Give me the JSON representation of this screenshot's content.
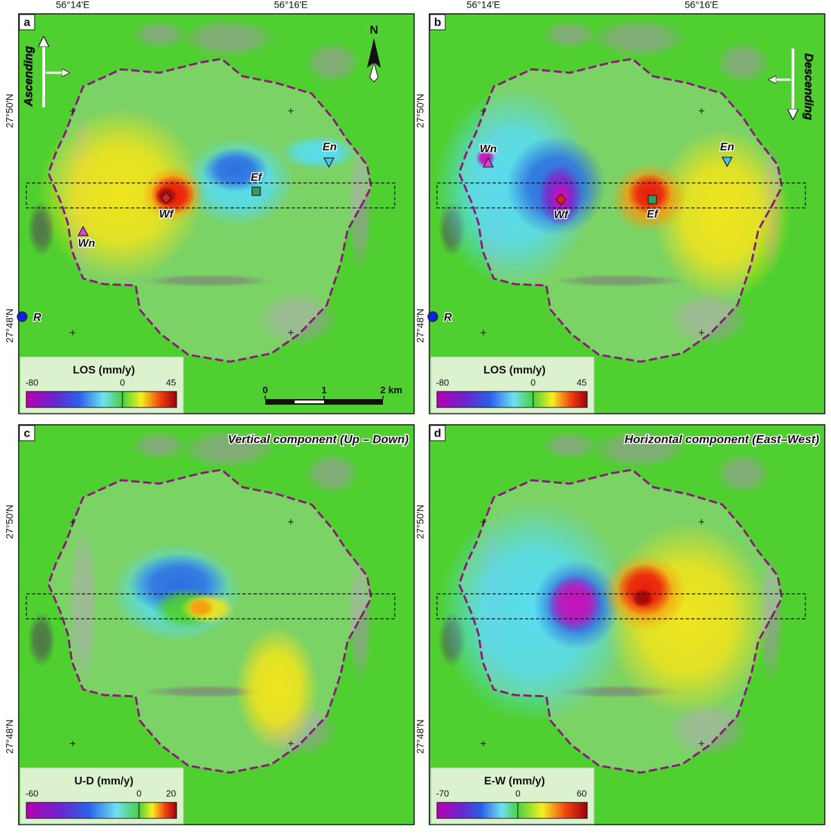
{
  "graticule": {
    "lon": [
      "56°14'E",
      "56°16'E"
    ],
    "lat": [
      "27°50'N",
      "27°48'N"
    ]
  },
  "panels": [
    {
      "letter": "a",
      "orientation": "Ascending",
      "north": "N",
      "points": [
        {
          "label": "Wn",
          "color": "#e040e0",
          "shape": "triangle-up"
        },
        {
          "label": "Wf",
          "color": "#e02020",
          "shape": "diamond"
        },
        {
          "label": "Ef",
          "color": "#3a9a60",
          "shape": "square"
        },
        {
          "label": "En",
          "color": "#40c8f0",
          "shape": "triangle-down"
        },
        {
          "label": "R",
          "color": "#1020e0",
          "shape": "circle"
        }
      ],
      "legend": {
        "title": "LOS (mm/y)",
        "range": [
          -80,
          45
        ],
        "ticks": [
          -80,
          0,
          45
        ]
      },
      "scale_bar": {
        "range": [
          0,
          2
        ],
        "ticks": [
          0,
          1,
          {
            "value": 2,
            "label": "2 km"
          }
        ]
      }
    },
    {
      "letter": "b",
      "orientation": "Descending",
      "points": [
        {
          "label": "Wn",
          "color": "#e040e0",
          "shape": "triangle-up"
        },
        {
          "label": "Wf",
          "color": "#e02020",
          "shape": "diamond"
        },
        {
          "label": "Ef",
          "color": "#3a9a60",
          "shape": "square"
        },
        {
          "label": "En",
          "color": "#40c8f0",
          "shape": "triangle-down"
        },
        {
          "label": "R",
          "color": "#1020e0",
          "shape": "circle"
        }
      ],
      "legend": {
        "title": "LOS (mm/y)",
        "range": [
          -80,
          45
        ],
        "ticks": [
          -80,
          0,
          45
        ]
      }
    },
    {
      "letter": "c",
      "title": "Vertical component (Up – Down)",
      "legend": {
        "title": "U-D  (mm/y)",
        "range": [
          -60,
          20
        ],
        "ticks": [
          -60,
          0,
          20
        ]
      }
    },
    {
      "letter": "d",
      "title": "Horizontal component (East–West)",
      "legend": {
        "title": "E-W  (mm/y)",
        "range": [
          -70,
          60
        ],
        "ticks": [
          -70,
          0,
          60
        ]
      }
    }
  ]
}
